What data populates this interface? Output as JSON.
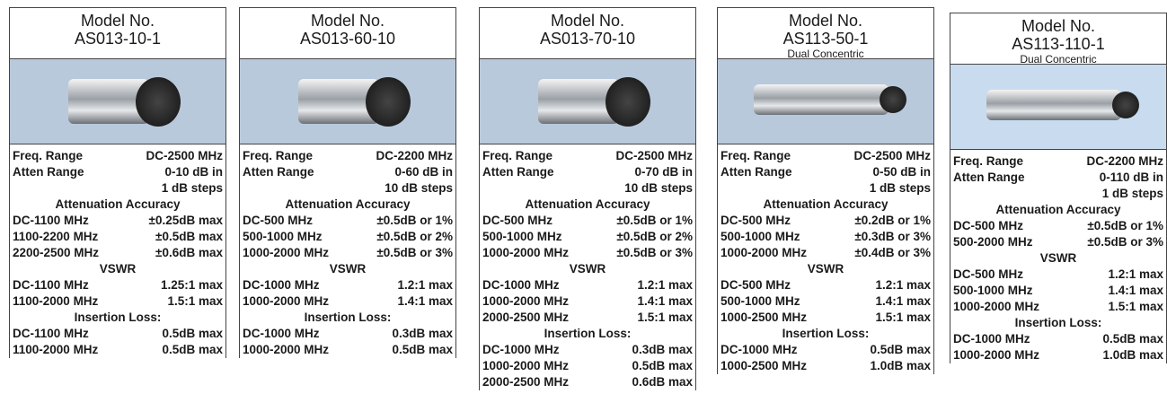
{
  "products": [
    {
      "model_label": "Model No.",
      "model": "AS013-10-1",
      "freq": {
        "label": "Freq. Range",
        "value": "DC-2500 MHz"
      },
      "atten": {
        "label": "Atten Range",
        "value": [
          "0-10 dB in",
          "1 dB steps"
        ]
      },
      "sections": [
        {
          "heading": "Attenuation Accuracy",
          "rows": [
            [
              "DC-1100 MHz",
              "±0.25dB max"
            ],
            [
              "1100-2200 MHz",
              "±0.5dB max"
            ],
            [
              "2200-2500 MHz",
              "±0.6dB max"
            ]
          ]
        },
        {
          "heading": "VSWR",
          "rows": [
            [
              "DC-1100 MHz",
              "1.25:1 max"
            ],
            [
              "1100-2000 MHz",
              "1.5:1 max"
            ]
          ]
        },
        {
          "heading": "Insertion Loss:",
          "rows": [
            [
              "DC-1100 MHz",
              "0.5dB max"
            ],
            [
              "1100-2000 MHz",
              "0.5dB max"
            ]
          ]
        }
      ]
    },
    {
      "model_label": "Model No.",
      "model": "AS013-60-10",
      "freq": {
        "label": "Freq. Range",
        "value": "DC-2200 MHz"
      },
      "atten": {
        "label": "Atten Range",
        "value": [
          "0-60 dB in",
          "10 dB steps"
        ]
      },
      "sections": [
        {
          "heading": "Attenuation Accuracy",
          "rows": [
            [
              "DC-500 MHz",
              "±0.5dB or 1%"
            ],
            [
              "500-1000 MHz",
              "±0.5dB or 2%"
            ],
            [
              "1000-2000 MHz",
              "±0.5dB or 3%"
            ]
          ]
        },
        {
          "heading": "VSWR",
          "rows": [
            [
              "DC-1000 MHz",
              "1.2:1 max"
            ],
            [
              "1000-2000 MHz",
              "1.4:1 max"
            ]
          ]
        },
        {
          "heading": "Insertion Loss:",
          "rows": [
            [
              "DC-1000 MHz",
              "0.3dB max"
            ],
            [
              "1000-2000 MHz",
              "0.5dB max"
            ]
          ]
        }
      ]
    },
    {
      "model_label": "Model No.",
      "model": "AS013-70-10",
      "freq": {
        "label": "Freq. Range",
        "value": "DC-2500 MHz"
      },
      "atten": {
        "label": "Atten Range",
        "value": [
          "0-70 dB in",
          "10 dB steps"
        ]
      },
      "sections": [
        {
          "heading": "Attenuation Accuracy",
          "rows": [
            [
              "DC-500 MHz",
              "±0.5dB or 1%"
            ],
            [
              "500-1000 MHz",
              "±0.5dB or 2%"
            ],
            [
              "1000-2000 MHz",
              "±0.5dB or 3%"
            ]
          ]
        },
        {
          "heading": "VSWR",
          "rows": [
            [
              "DC-1000 MHz",
              "1.2:1 max"
            ],
            [
              "1000-2000 MHz",
              "1.4:1 max"
            ],
            [
              "2000-2500 MHz",
              "1.5:1 max"
            ]
          ]
        },
        {
          "heading": "Insertion Loss:",
          "rows": [
            [
              "DC-1000 MHz",
              "0.3dB max"
            ],
            [
              "1000-2000 MHz",
              "0.5dB max"
            ],
            [
              "2000-2500 MHz",
              "0.6dB max"
            ]
          ]
        }
      ]
    },
    {
      "model_label": "Model No.",
      "model": "AS113-50-1",
      "subtitle": "Dual Concentric",
      "freq": {
        "label": "Freq. Range",
        "value": "DC-2500 MHz"
      },
      "atten": {
        "label": "Atten Range",
        "value": [
          "0-50 dB in",
          "1 dB steps"
        ]
      },
      "sections": [
        {
          "heading": "Attenuation Accuracy",
          "rows": [
            [
              "DC-500 MHz",
              "±0.2dB or 1%"
            ],
            [
              "500-1000 MHz",
              "±0.3dB or 3%"
            ],
            [
              "1000-2000 MHz",
              "±0.4dB or 3%"
            ]
          ]
        },
        {
          "heading": "VSWR",
          "rows": [
            [
              "DC-500 MHz",
              "1.2:1 max"
            ],
            [
              "500-1000 MHz",
              "1.4:1 max"
            ],
            [
              "1000-2500 MHz",
              "1.5:1 max"
            ]
          ]
        },
        {
          "heading": "Insertion Loss:",
          "rows": [
            [
              "DC-1000 MHz",
              "0.5dB max"
            ],
            [
              "1000-2500 MHz",
              "1.0dB max"
            ]
          ]
        }
      ]
    },
    {
      "model_label": "Model No.",
      "model": "AS113-110-1",
      "subtitle": "Dual Concentric",
      "freq": {
        "label": "Freq. Range",
        "value": "DC-2200 MHz"
      },
      "atten": {
        "label": "Atten Range",
        "value": [
          "0-110 dB in",
          "1 dB steps"
        ]
      },
      "sections": [
        {
          "heading": "Attenuation Accuracy",
          "rows": [
            [
              "DC-500 MHz",
              "±0.5dB or 1%"
            ],
            [
              "500-2000 MHz",
              "±0.5dB or 3%"
            ]
          ]
        },
        {
          "heading": "VSWR",
          "rows": [
            [
              "DC-500 MHz",
              "1.2:1 max"
            ],
            [
              "500-1000 MHz",
              "1.4:1 max"
            ],
            [
              "1000-2000 MHz",
              "1.5:1 max"
            ]
          ]
        },
        {
          "heading": "Insertion Loss:",
          "rows": [
            [
              "DC-1000 MHz",
              "0.5dB max"
            ],
            [
              "1000-2000 MHz",
              "1.0dB max"
            ]
          ]
        }
      ]
    }
  ]
}
